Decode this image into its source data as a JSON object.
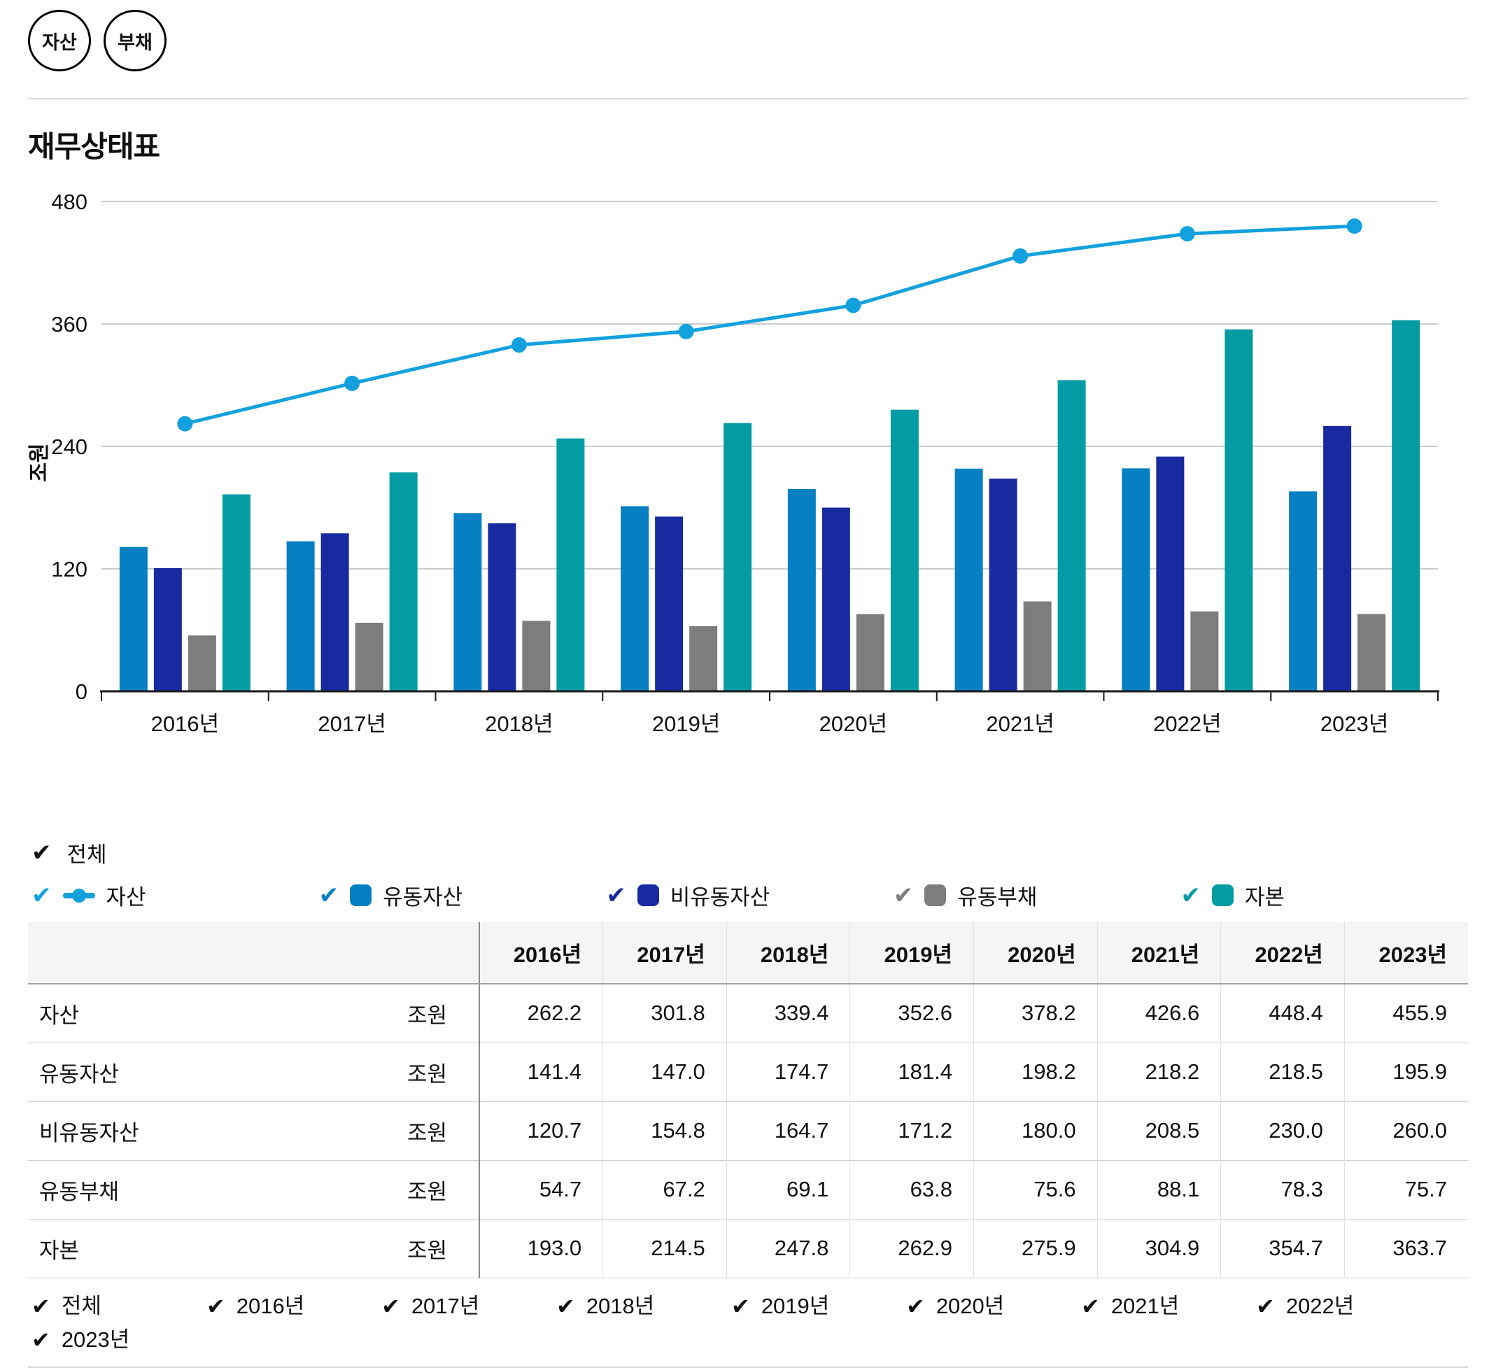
{
  "toolbar": {
    "buttons": [
      {
        "label": "자산"
      },
      {
        "label": "부채"
      }
    ]
  },
  "page": {
    "title": "재무상태표"
  },
  "chart_data": {
    "type": "combo",
    "categories": [
      "2016년",
      "2017년",
      "2018년",
      "2019년",
      "2020년",
      "2021년",
      "2022년",
      "2023년"
    ],
    "y_axis": {
      "label": "조원",
      "ticks": [
        0,
        120,
        240,
        360,
        480
      ],
      "max": 480,
      "grid": true
    },
    "series": [
      {
        "name": "자산",
        "type": "line",
        "color": "#12A1DE",
        "values": [
          262.2,
          301.8,
          339.4,
          352.6,
          378.2,
          426.6,
          448.4,
          455.9
        ]
      },
      {
        "name": "유동자산",
        "type": "bar",
        "color": "#0680C3",
        "values": [
          141.4,
          147.0,
          174.7,
          181.4,
          198.2,
          218.2,
          218.5,
          195.9
        ]
      },
      {
        "name": "비유동자산",
        "type": "bar",
        "color": "#182AA0",
        "values": [
          120.7,
          154.8,
          164.7,
          171.2,
          180.0,
          208.5,
          230.0,
          260.0
        ]
      },
      {
        "name": "유동부채",
        "type": "bar",
        "color": "#7D7D7D",
        "values": [
          54.7,
          67.2,
          69.1,
          63.8,
          75.6,
          88.1,
          78.3,
          75.7
        ]
      },
      {
        "name": "자본",
        "type": "bar",
        "color": "#049CA4",
        "values": [
          193.0,
          214.5,
          247.8,
          262.9,
          275.9,
          304.9,
          354.7,
          363.7
        ]
      }
    ],
    "legend_all": {
      "label": "전체",
      "checked": true,
      "color": "#111111"
    },
    "legend_position": "bottom"
  },
  "table": {
    "columns": [
      "2016년",
      "2017년",
      "2018년",
      "2019년",
      "2020년",
      "2021년",
      "2022년",
      "2023년"
    ],
    "rows": [
      {
        "label": "자산",
        "unit": "조원",
        "values": [
          "262.2",
          "301.8",
          "339.4",
          "352.6",
          "378.2",
          "426.6",
          "448.4",
          "455.9"
        ]
      },
      {
        "label": "유동자산",
        "unit": "조원",
        "values": [
          "141.4",
          "147.0",
          "174.7",
          "181.4",
          "198.2",
          "218.2",
          "218.5",
          "195.9"
        ]
      },
      {
        "label": "비유동자산",
        "unit": "조원",
        "values": [
          "120.7",
          "154.8",
          "164.7",
          "171.2",
          "180.0",
          "208.5",
          "230.0",
          "260.0"
        ]
      },
      {
        "label": "유동부채",
        "unit": "조원",
        "values": [
          "54.7",
          "67.2",
          "69.1",
          "63.8",
          "75.6",
          "88.1",
          "78.3",
          "75.7"
        ]
      },
      {
        "label": "자본",
        "unit": "조원",
        "values": [
          "193.0",
          "214.5",
          "247.8",
          "262.9",
          "275.9",
          "304.9",
          "354.7",
          "363.7"
        ]
      }
    ]
  },
  "year_filters": {
    "items": [
      {
        "label": "전체",
        "checked": true
      },
      {
        "label": "2016년",
        "checked": true
      },
      {
        "label": "2017년",
        "checked": true
      },
      {
        "label": "2018년",
        "checked": true
      },
      {
        "label": "2019년",
        "checked": true
      },
      {
        "label": "2020년",
        "checked": true
      },
      {
        "label": "2021년",
        "checked": true
      },
      {
        "label": "2022년",
        "checked": true
      },
      {
        "label": "2023년",
        "checked": true
      }
    ],
    "check_glyph": "✔"
  }
}
